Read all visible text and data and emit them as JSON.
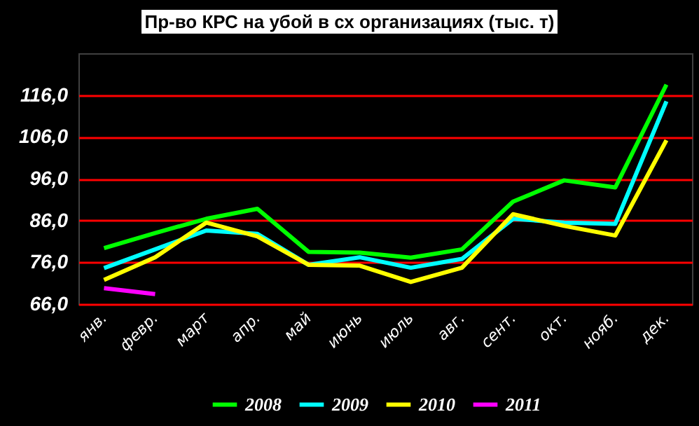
{
  "chart_data": {
    "type": "line",
    "title": "Пр-во КРС на убой в сх организациях (тыс. т)",
    "categories": [
      "янв.",
      "февр.",
      "март",
      "апр.",
      "май",
      "июнь",
      "июль",
      "авг.",
      "сент.",
      "окт.",
      "нояб.",
      "дек."
    ],
    "series": [
      {
        "name": "2008",
        "color": "#00ff00",
        "values": [
          79.4,
          83,
          86.4,
          88.8,
          78.5,
          78.3,
          77.1,
          79.1,
          90.5,
          95.6,
          93.9,
          118.5
        ]
      },
      {
        "name": "2009",
        "color": "#00ffff",
        "values": [
          74.6,
          79.1,
          83.6,
          82.8,
          75.4,
          77.2,
          74.7,
          76.8,
          86.4,
          85.5,
          85.2,
          114.5
        ]
      },
      {
        "name": "2010",
        "color": "#ffff00",
        "values": [
          71.8,
          77.2,
          85.5,
          82.2,
          75.4,
          75.2,
          71.3,
          74.7,
          87.5,
          84.7,
          82.4,
          105.2
        ]
      },
      {
        "name": "2011",
        "color": "#ff00ff",
        "values": [
          69.8,
          68.4,
          null,
          null,
          null,
          null,
          null,
          null,
          null,
          null,
          null,
          null
        ]
      }
    ],
    "ylim": [
      66,
      126
    ],
    "yticks": [
      {
        "value": 66,
        "label": "66,0"
      },
      {
        "value": 76,
        "label": "76,0"
      },
      {
        "value": 86,
        "label": "86,0"
      },
      {
        "value": 96,
        "label": "96,0"
      },
      {
        "value": 106,
        "label": "106,0"
      },
      {
        "value": 116,
        "label": "116,0"
      }
    ],
    "grid": "y",
    "legend": "bottom",
    "marker": "none",
    "line_style": "solid"
  }
}
